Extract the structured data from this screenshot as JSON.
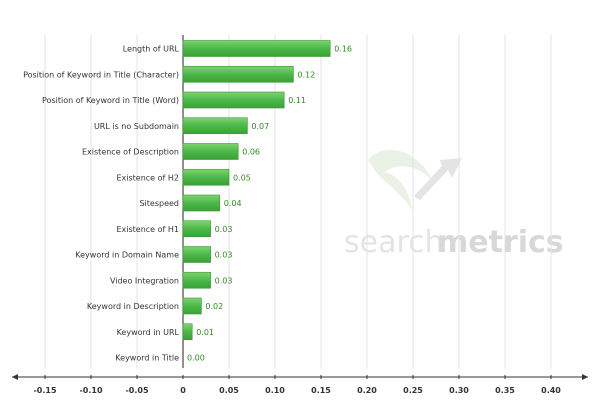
{
  "chart_data": {
    "type": "bar",
    "orientation": "horizontal",
    "categories": [
      "Length of URL",
      "Position of Keyword in Title (Character)",
      "Position of Keyword in Title (Word)",
      "URL is no Subdomain",
      "Existence of Description",
      "Existence of H2",
      "Sitespeed",
      "Existence of H1",
      "Keyword in Domain Name",
      "Video Integration",
      "Keyword in Description",
      "Keyword in URL",
      "Keyword in Title"
    ],
    "values": [
      0.16,
      0.12,
      0.11,
      0.07,
      0.06,
      0.05,
      0.04,
      0.03,
      0.03,
      0.03,
      0.02,
      0.01,
      0.0
    ],
    "value_labels": [
      "0.16",
      "0.12",
      "0.11",
      "0.07",
      "0.06",
      "0.05",
      "0.04",
      "0.03",
      "0.03",
      "0.03",
      "0.02",
      "0.01",
      "0.00"
    ],
    "xlim": [
      -0.17,
      0.45
    ],
    "xticks": [
      -0.15,
      -0.1,
      -0.05,
      0,
      0.05,
      0.1,
      0.15,
      0.2,
      0.25,
      0.3,
      0.35,
      0.4
    ],
    "xtick_labels": [
      "-0.15",
      "-0.10",
      "-0.05",
      "0",
      "0.05",
      "0.10",
      "0.15",
      "0.20",
      "0.25",
      "0.30",
      "0.35",
      "0.40"
    ],
    "grid": true,
    "title": "",
    "xlabel": "",
    "ylabel": "",
    "bar_color": "#4cb84a",
    "label_color": "#2e8b22"
  },
  "watermark": {
    "text_light": "search",
    "text_bold": "metrics"
  }
}
